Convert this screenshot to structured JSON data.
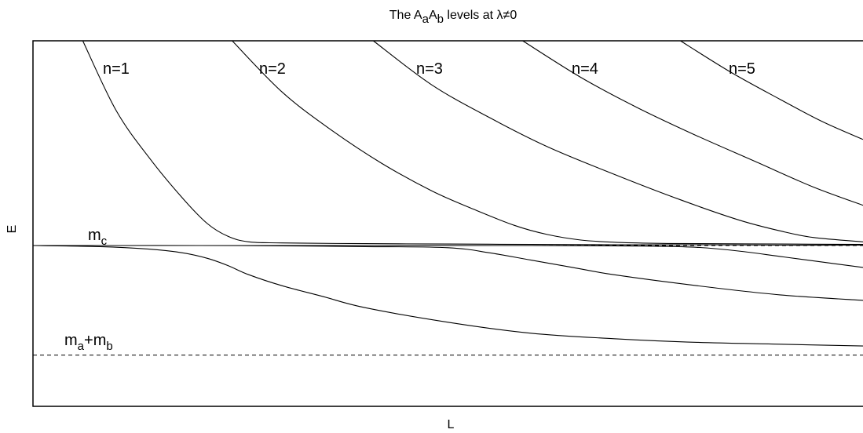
{
  "chart_data": {
    "type": "line",
    "title": {
      "base": "The A",
      "sub1": "a",
      "mid": "A",
      "sub2": "b",
      "rest": " levels at λ≠0"
    },
    "xlabel": "L",
    "ylabel": "E",
    "grid": false,
    "ticks": "none",
    "xlim": [
      0,
      1
    ],
    "ylim": [
      0,
      1
    ],
    "reference_lines": [
      {
        "name": "m_c",
        "label_base": "m",
        "label_sub": "c",
        "y": 0.44,
        "style": "dashed"
      },
      {
        "name": "m_a+m_b",
        "label_base": "m",
        "label_sub1": "a",
        "plus": "+m",
        "label_sub2": "b",
        "y": 0.14,
        "style": "dashed"
      }
    ],
    "level_labels": [
      "n=1",
      "n=2",
      "n=3",
      "n=4",
      "n=5"
    ],
    "series": [
      {
        "x": [
          0.06,
          0.1,
          0.14,
          0.18,
          0.21,
          0.235,
          0.26,
          0.3,
          0.4,
          0.5,
          0.6,
          0.7,
          0.8,
          0.9,
          1.0
        ],
        "y": [
          1.0,
          0.81,
          0.68,
          0.57,
          0.5,
          0.465,
          0.45,
          0.447,
          0.445,
          0.444,
          0.443,
          0.442,
          0.442,
          0.441,
          0.441
        ]
      },
      {
        "x": [
          0.24,
          0.3,
          0.36,
          0.42,
          0.48,
          0.53,
          0.58,
          0.62,
          0.66,
          0.7,
          0.75,
          0.8,
          0.9,
          1.0
        ],
        "y": [
          1.0,
          0.86,
          0.755,
          0.665,
          0.59,
          0.54,
          0.495,
          0.47,
          0.455,
          0.449,
          0.446,
          0.445,
          0.444,
          0.443
        ]
      },
      {
        "x": [
          0.41,
          0.48,
          0.55,
          0.62,
          0.7,
          0.78,
          0.85,
          0.9,
          0.94,
          1.0
        ],
        "y": [
          1.0,
          0.88,
          0.79,
          0.71,
          0.635,
          0.565,
          0.51,
          0.48,
          0.462,
          0.45
        ]
      },
      {
        "x": [
          0.59,
          0.66,
          0.73,
          0.8,
          0.87,
          0.94,
          1.0
        ],
        "y": [
          1.0,
          0.9,
          0.815,
          0.74,
          0.67,
          0.6,
          0.55
        ]
      },
      {
        "x": [
          0.78,
          0.84,
          0.9,
          0.95,
          1.0
        ],
        "y": [
          1.0,
          0.915,
          0.84,
          0.78,
          0.73
        ]
      },
      {
        "x": [
          0.0,
          0.08,
          0.14,
          0.18,
          0.21,
          0.235,
          0.26,
          0.3,
          0.35,
          0.4,
          0.5,
          0.6,
          0.7,
          0.8,
          0.9,
          1.0
        ],
        "y": [
          0.44,
          0.437,
          0.43,
          0.42,
          0.405,
          0.385,
          0.36,
          0.33,
          0.3,
          0.27,
          0.23,
          0.2,
          0.185,
          0.175,
          0.17,
          0.165
        ]
      },
      {
        "x": [
          0.0,
          0.1,
          0.2,
          0.3,
          0.4,
          0.5,
          0.55,
          0.6,
          0.65,
          0.7,
          0.8,
          0.9,
          1.0
        ],
        "y": [
          0.44,
          0.44,
          0.44,
          0.439,
          0.437,
          0.434,
          0.42,
          0.4,
          0.38,
          0.36,
          0.33,
          0.305,
          0.29
        ]
      },
      {
        "x": [
          0.0,
          0.2,
          0.4,
          0.6,
          0.7,
          0.75,
          0.8,
          0.85,
          0.9,
          0.95,
          1.0
        ],
        "y": [
          0.44,
          0.44,
          0.44,
          0.44,
          0.439,
          0.438,
          0.435,
          0.425,
          0.41,
          0.395,
          0.38
        ]
      }
    ]
  }
}
